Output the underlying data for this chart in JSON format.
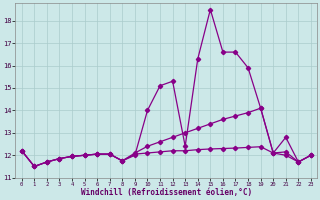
{
  "xlabel": "Windchill (Refroidissement éolien,°C)",
  "bg_color": "#cce8e8",
  "grid_color": "#aacccc",
  "line_color": "#880088",
  "xlim": [
    -0.5,
    23.5
  ],
  "ylim": [
    11.0,
    18.8
  ],
  "yticks": [
    11,
    12,
    13,
    14,
    15,
    16,
    17,
    18
  ],
  "xticks": [
    0,
    1,
    2,
    3,
    4,
    5,
    6,
    7,
    8,
    9,
    10,
    11,
    12,
    13,
    14,
    15,
    16,
    17,
    18,
    19,
    20,
    21,
    22,
    23
  ],
  "series1_x": [
    0,
    1,
    2,
    3,
    4,
    5,
    6,
    7,
    8,
    9,
    10,
    11,
    12,
    13,
    14,
    15,
    16,
    17,
    18,
    19,
    20,
    21,
    22,
    23
  ],
  "series1_y": [
    12.2,
    11.5,
    11.7,
    11.85,
    11.95,
    12.0,
    12.05,
    12.05,
    11.75,
    12.0,
    14.0,
    15.1,
    15.3,
    12.4,
    16.3,
    18.5,
    16.6,
    16.6,
    15.9,
    14.1,
    12.1,
    12.8,
    11.7,
    12.0
  ],
  "series2_x": [
    0,
    1,
    2,
    3,
    4,
    5,
    6,
    7,
    8,
    9,
    10,
    11,
    12,
    13,
    14,
    15,
    16,
    17,
    18,
    19,
    20,
    21,
    22,
    23
  ],
  "series2_y": [
    12.2,
    11.5,
    11.7,
    11.85,
    11.95,
    12.0,
    12.05,
    12.05,
    11.75,
    12.1,
    12.4,
    12.6,
    12.8,
    13.0,
    13.2,
    13.4,
    13.6,
    13.75,
    13.9,
    14.1,
    12.1,
    12.15,
    11.7,
    12.0
  ],
  "series3_x": [
    0,
    1,
    2,
    3,
    4,
    5,
    6,
    7,
    8,
    9,
    10,
    11,
    12,
    13,
    14,
    15,
    16,
    17,
    18,
    19,
    20,
    21,
    22,
    23
  ],
  "series3_y": [
    12.2,
    11.5,
    11.7,
    11.85,
    11.95,
    12.0,
    12.05,
    12.05,
    11.75,
    12.05,
    12.1,
    12.15,
    12.2,
    12.2,
    12.25,
    12.28,
    12.3,
    12.32,
    12.35,
    12.38,
    12.1,
    12.0,
    11.7,
    12.0
  ]
}
